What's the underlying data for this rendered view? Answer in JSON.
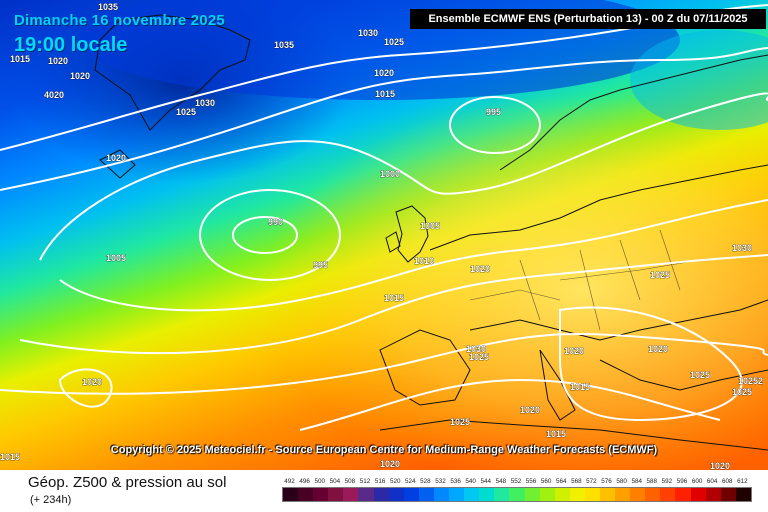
{
  "header": {
    "date": "Dimanche 16 novembre 2025",
    "time": "19:00 locale",
    "model_title": "Ensemble ECMWF ENS  (Perturbation 13)  -  00 Z du 07/11/2025"
  },
  "copyright": "Copyright © 2025 Meteociel.fr - Source European Centre for Medium-Range Weather Forecasts (ECMWF)",
  "legend": {
    "title": "Géop. Z500 & pression au sol",
    "subtitle": "(+ 234h)",
    "scale_values": [
      "492",
      "496",
      "500",
      "504",
      "508",
      "512",
      "516",
      "520",
      "524",
      "528",
      "532",
      "536",
      "540",
      "544",
      "548",
      "552",
      "556",
      "560",
      "564",
      "568",
      "572",
      "576",
      "580",
      "584",
      "588",
      "592",
      "596",
      "600",
      "604",
      "608",
      "612"
    ],
    "scale_colors": [
      "#2a0018",
      "#4a0024",
      "#660033",
      "#801040",
      "#9a1a5a",
      "#5a2a8a",
      "#2a2aa6",
      "#1030c8",
      "#0040e0",
      "#0060f0",
      "#0088ff",
      "#00a8ff",
      "#00c8f0",
      "#00dcd0",
      "#20e8a0",
      "#40f060",
      "#70f030",
      "#a0f010",
      "#d0f000",
      "#f0f000",
      "#ffe000",
      "#ffc000",
      "#ffa000",
      "#ff8000",
      "#ff6000",
      "#ff4000",
      "#ff2000",
      "#e00000",
      "#b00000",
      "#700000",
      "#200000"
    ]
  },
  "isobar_labels": [
    {
      "text": "1035"
    },
    {
      "text": "1015"
    },
    {
      "text": "1020"
    },
    {
      "text": "1020"
    },
    {
      "text": "4020"
    },
    {
      "text": "1030"
    },
    {
      "text": "1025"
    },
    {
      "text": "1020"
    },
    {
      "text": "1035"
    },
    {
      "text": "1030"
    },
    {
      "text": "1025"
    },
    {
      "text": "1020"
    },
    {
      "text": "1015"
    },
    {
      "text": "995"
    },
    {
      "text": "1000"
    },
    {
      "text": "990"
    },
    {
      "text": "995"
    },
    {
      "text": "1005"
    },
    {
      "text": "1005"
    },
    {
      "text": "1010"
    },
    {
      "text": "1020"
    },
    {
      "text": "1015"
    },
    {
      "text": "1025"
    },
    {
      "text": "1030"
    },
    {
      "text": "1030"
    },
    {
      "text": "1025"
    },
    {
      "text": "1020"
    },
    {
      "text": "1015"
    },
    {
      "text": "1020"
    },
    {
      "text": "1025"
    },
    {
      "text": "1015"
    },
    {
      "text": "1020"
    },
    {
      "text": "1025"
    },
    {
      "text": "10252"
    },
    {
      "text": "1025"
    },
    {
      "text": "1015"
    },
    {
      "text": "1020"
    },
    {
      "text": "1020"
    },
    {
      "text": "1020"
    }
  ]
}
